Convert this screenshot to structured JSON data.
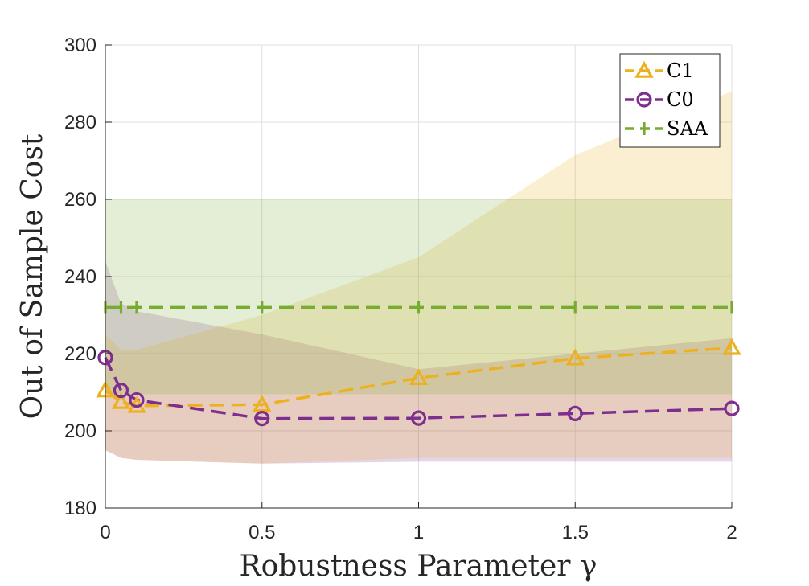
{
  "chart_data": {
    "type": "line",
    "xlabel": "Robustness Parameter γ",
    "ylabel": "Out of Sample Cost",
    "xlim": [
      0,
      2
    ],
    "ylim": [
      180,
      300
    ],
    "xticks": [
      0,
      0.5,
      1,
      1.5,
      2
    ],
    "xtick_labels": [
      "0",
      "0.5",
      "1",
      "1.5",
      "2"
    ],
    "yticks": [
      180,
      200,
      220,
      240,
      260,
      280,
      300
    ],
    "ytick_labels": [
      "180",
      "200",
      "220",
      "240",
      "260",
      "280",
      "300"
    ],
    "grid": true,
    "legend_position": "top-right",
    "x": [
      0,
      0.05,
      0.1,
      0.5,
      1,
      1.5,
      2
    ],
    "series": [
      {
        "name": "C1",
        "marker": "triangle",
        "color": "#EDB120",
        "values": [
          210.5,
          207.5,
          206.5,
          206.8,
          213.7,
          218.8,
          221.5
        ],
        "band_upper": [
          225,
          221,
          221,
          230,
          245,
          271.5,
          288
        ],
        "band_lower": [
          195,
          193,
          192.5,
          191.5,
          193,
          193,
          193
        ]
      },
      {
        "name": "C0",
        "marker": "circle",
        "color": "#7E2F8E",
        "values": [
          219,
          210.5,
          208,
          203.2,
          203.3,
          204.5,
          205.8
        ],
        "band_upper": [
          244,
          233,
          231,
          225,
          216,
          220,
          224
        ],
        "band_lower": [
          195,
          193,
          192.5,
          191.5,
          192,
          192,
          192
        ]
      },
      {
        "name": "SAA",
        "marker": "vline",
        "color": "#77AC30",
        "values": [
          232,
          232,
          232,
          232,
          232,
          232,
          232
        ],
        "band_upper": [
          260,
          260,
          260,
          260,
          260,
          260,
          260
        ],
        "band_lower": [
          209.5,
          209.5,
          209.5,
          209.5,
          209.5,
          209.5,
          209.5
        ]
      }
    ]
  }
}
